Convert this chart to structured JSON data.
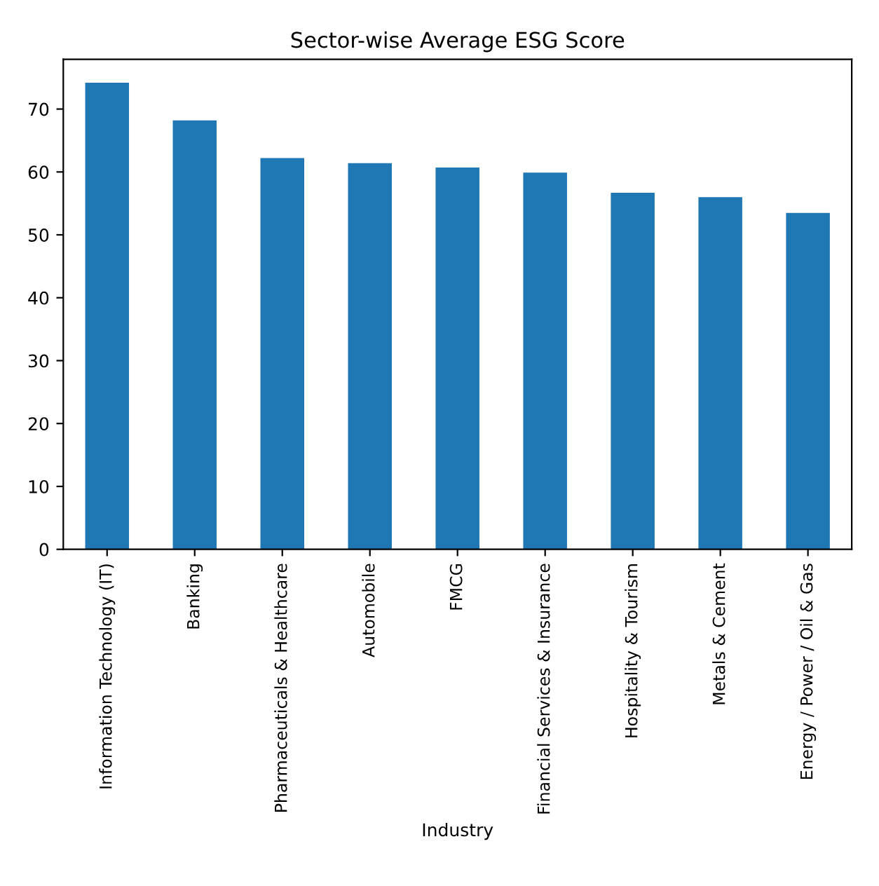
{
  "chart_data": {
    "type": "bar",
    "title": "Sector-wise Average ESG Score",
    "xlabel": "Industry",
    "categories": [
      "Information Technology (IT)",
      "Banking",
      "Pharmaceuticals & Healthcare",
      "Automobile",
      "FMCG",
      "Financial Services & Insurance",
      "Hospitality & Tourism",
      "Metals & Cement",
      "Energy / Power / Oil & Gas"
    ],
    "values": [
      74.2,
      68.2,
      62.2,
      61.4,
      60.7,
      59.9,
      56.7,
      56.0,
      53.5
    ],
    "color": "#1f77b4",
    "ylim": [
      0,
      77.9
    ],
    "yticks": [
      0,
      10,
      20,
      30,
      40,
      50,
      60,
      70
    ],
    "grid": false
  }
}
